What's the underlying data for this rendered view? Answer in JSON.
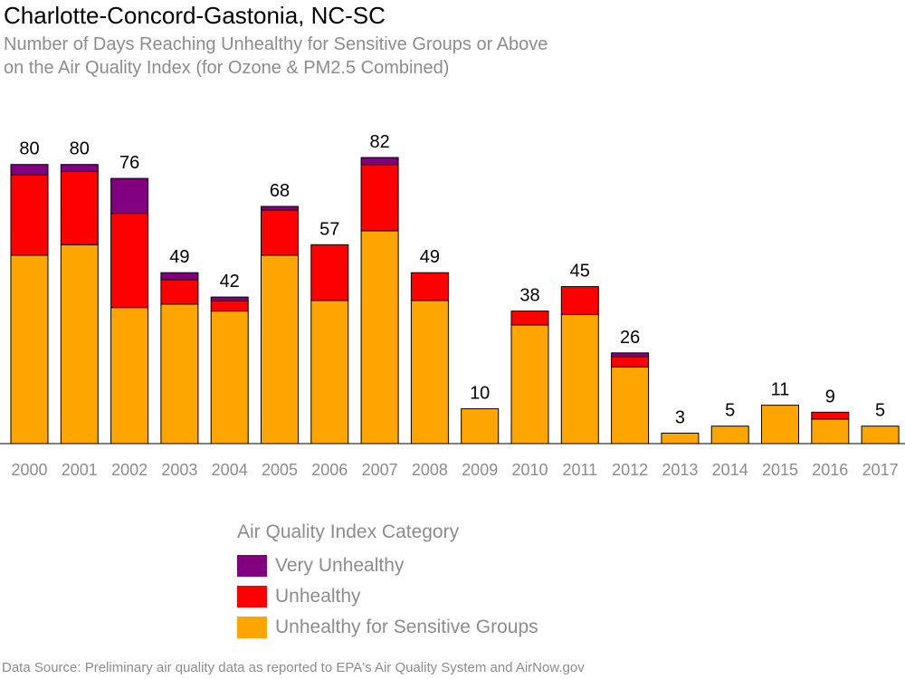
{
  "chart_data": {
    "type": "bar",
    "stacked": true,
    "title": "Charlotte-Concord-Gastonia, NC-SC",
    "subtitle_lines": [
      "Number of Days Reaching Unhealthy for Sensitive Groups or Above",
      "on the Air Quality Index (for Ozone & PM2.5 Combined)"
    ],
    "categories": [
      "2000",
      "2001",
      "2002",
      "2003",
      "2004",
      "2005",
      "2006",
      "2007",
      "2008",
      "2009",
      "2010",
      "2011",
      "2012",
      "2013",
      "2014",
      "2015",
      "2016",
      "2017"
    ],
    "series": [
      {
        "name": "Unhealthy for Sensitive Groups",
        "color": "#ffa500",
        "values": [
          54,
          57,
          39,
          40,
          38,
          54,
          41,
          61,
          41,
          10,
          34,
          37,
          22,
          3,
          5,
          11,
          7,
          5
        ]
      },
      {
        "name": "Unhealthy",
        "color": "#ff0000",
        "values": [
          23,
          21,
          27,
          7,
          3,
          13,
          16,
          19,
          8,
          0,
          4,
          8,
          3,
          0,
          0,
          0,
          2,
          0
        ]
      },
      {
        "name": "Very Unhealthy",
        "color": "#800080",
        "values": [
          3,
          2,
          10,
          2,
          1,
          1,
          0,
          2,
          0,
          0,
          0,
          0,
          1,
          0,
          0,
          0,
          0,
          0
        ]
      }
    ],
    "totals": [
      80,
      80,
      76,
      49,
      42,
      68,
      57,
      82,
      49,
      10,
      38,
      45,
      26,
      3,
      5,
      11,
      9,
      5
    ],
    "ylim": [
      0,
      82
    ],
    "grid": false,
    "legend": {
      "title": "Air Quality Index Category",
      "placement": "bottom-center",
      "order": [
        "Very Unhealthy",
        "Unhealthy",
        "Unhealthy for Sensitive Groups"
      ]
    },
    "source": "Data Source: Preliminary air quality data as reported to EPA's Air Quality System and AirNow.gov"
  },
  "colors": {
    "title": "#000000",
    "secondary_text": "#8c8c8c",
    "bar_outline": "#000000",
    "axis_line": "#000000"
  }
}
